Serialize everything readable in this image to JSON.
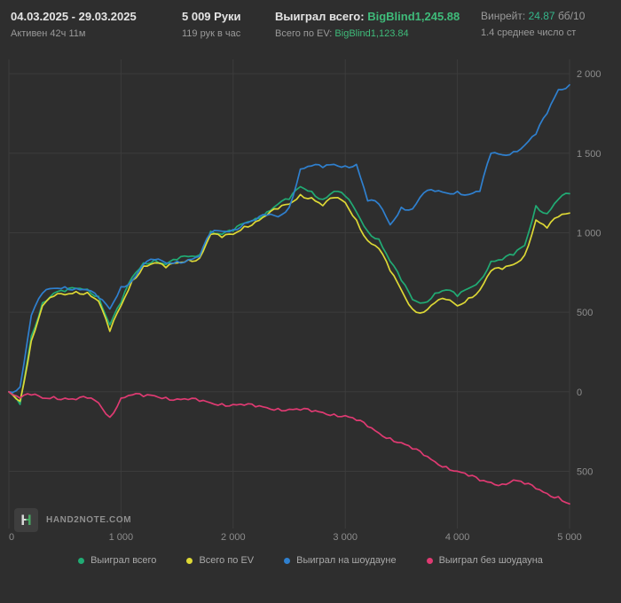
{
  "header": {
    "date_range": "04.03.2025 - 29.03.2025",
    "active_time": "Активен 42ч 11м",
    "hands": "5 009 Руки",
    "hands_per_hour": "119 рук в час",
    "won_label": "Выиграл всего:",
    "won_value": "BigBlind1,245.88",
    "ev_label": "Всего по EV:",
    "ev_value": "BigBlind1,123.84",
    "winrate_label": "Винрейт:",
    "winrate_value": "24.87",
    "winrate_unit": "бб/10",
    "avg_stat": "1.4 среднее число ст"
  },
  "logo": {
    "mark": "H",
    "text": "HAND2NOTE.COM"
  },
  "colors": {
    "background": "#2e2e2e",
    "grid": "#3c3c3c",
    "positive_value": "#3fbb7a",
    "winrate_value": "#35b68b",
    "secondary_text": "#9a9a9a",
    "primary_text": "#e4e4e4"
  },
  "chart_data": {
    "type": "line",
    "title": "",
    "xlabel": "",
    "ylabel": "",
    "grid": true,
    "legend_position": "bottom",
    "xlim": [
      0,
      5000
    ],
    "ylim": [
      -860,
      2090
    ],
    "x_step": 100,
    "x_ticks": [
      0,
      1000,
      2000,
      3000,
      4000,
      5000
    ],
    "x_tick_labels": [
      "0",
      "1 000",
      "2 000",
      "3 000",
      "4 000",
      "5 000"
    ],
    "y_ticks": [
      2000,
      1500,
      1000,
      500,
      0,
      -500
    ],
    "y_tick_labels": [
      "2 000",
      "1 500",
      "1 000",
      "500",
      "0",
      "500"
    ],
    "series": [
      {
        "name": "Выиграл всего",
        "color": "#21ab74",
        "values": [
          0,
          -80,
          350,
          560,
          620,
          630,
          650,
          645,
          600,
          420,
          560,
          720,
          810,
          830,
          800,
          830,
          850,
          860,
          1010,
          990,
          1010,
          1060,
          1090,
          1130,
          1180,
          1210,
          1290,
          1260,
          1210,
          1260,
          1230,
          1130,
          1010,
          960,
          820,
          700,
          580,
          560,
          620,
          640,
          600,
          650,
          700,
          820,
          830,
          860,
          920,
          1170,
          1120,
          1210,
          1245.88
        ]
      },
      {
        "name": "Всего по EV",
        "color": "#ddd835",
        "values": [
          0,
          -60,
          320,
          540,
          600,
          610,
          630,
          625,
          570,
          380,
          540,
          700,
          790,
          810,
          780,
          810,
          830,
          840,
          990,
          970,
          990,
          1040,
          1070,
          1110,
          1150,
          1180,
          1240,
          1220,
          1170,
          1220,
          1190,
          1080,
          950,
          900,
          760,
          640,
          520,
          500,
          560,
          580,
          540,
          590,
          640,
          760,
          770,
          800,
          860,
          1080,
          1030,
          1100,
          1123.84
        ]
      },
      {
        "name": "Выиграл на шоудауне",
        "color": "#2f80cf",
        "values": [
          0,
          30,
          480,
          620,
          650,
          660,
          650,
          640,
          590,
          520,
          660,
          700,
          800,
          830,
          810,
          820,
          830,
          850,
          1000,
          1010,
          1020,
          1060,
          1080,
          1110,
          1100,
          1160,
          1400,
          1420,
          1410,
          1430,
          1420,
          1430,
          1200,
          1180,
          1050,
          1160,
          1150,
          1250,
          1260,
          1250,
          1260,
          1240,
          1260,
          1500,
          1490,
          1510,
          1550,
          1620,
          1750,
          1900,
          1930
        ]
      },
      {
        "name": "Выиграл без шоудауна",
        "color": "#df3a72",
        "values": [
          0,
          -40,
          -20,
          -40,
          -30,
          -40,
          -50,
          -40,
          -70,
          -160,
          -40,
          -20,
          -30,
          -25,
          -35,
          -45,
          -50,
          -60,
          -70,
          -75,
          -80,
          -85,
          -95,
          -100,
          -105,
          -110,
          -115,
          -125,
          -130,
          -140,
          -150,
          -180,
          -220,
          -260,
          -290,
          -320,
          -360,
          -400,
          -440,
          -470,
          -500,
          -530,
          -560,
          -570,
          -580,
          -555,
          -580,
          -610,
          -640,
          -660,
          -705
        ]
      }
    ]
  }
}
